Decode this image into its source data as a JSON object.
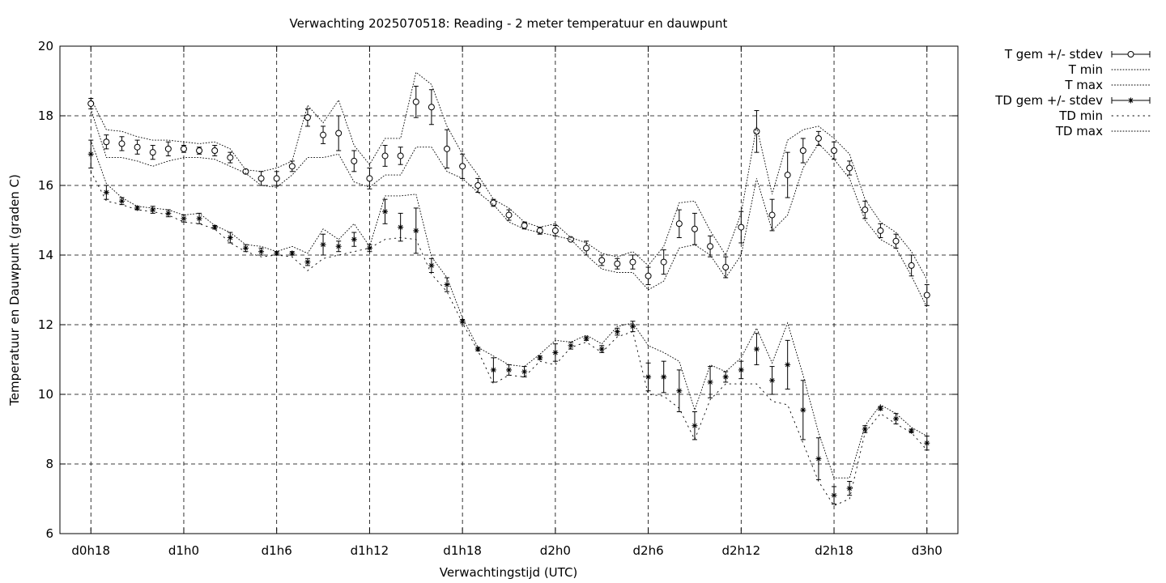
{
  "chart_data": {
    "type": "line",
    "title": "Verwachting 2025070518: Reading - 2 meter temperatuur en dauwpunt",
    "xlabel": "Verwachtingstijd (UTC)",
    "ylabel": "Temperatuur en Dauwpunt (graden C)",
    "x_unit": "hours since d0h0",
    "xlim": [
      16,
      74
    ],
    "ylim": [
      6,
      20
    ],
    "yticks": [
      6,
      8,
      10,
      12,
      14,
      16,
      18,
      20
    ],
    "xticks": [
      {
        "x": 18,
        "label": "d0h18"
      },
      {
        "x": 24,
        "label": "d1h0"
      },
      {
        "x": 30,
        "label": "d1h6"
      },
      {
        "x": 36,
        "label": "d1h12"
      },
      {
        "x": 42,
        "label": "d1h18"
      },
      {
        "x": 48,
        "label": "d2h0"
      },
      {
        "x": 54,
        "label": "d2h6"
      },
      {
        "x": 60,
        "label": "d2h12"
      },
      {
        "x": 66,
        "label": "d2h18"
      },
      {
        "x": 72,
        "label": "d3h0"
      }
    ],
    "grid": true,
    "legend_position": "outside-right",
    "x": [
      18,
      19,
      20,
      21,
      22,
      23,
      24,
      25,
      26,
      27,
      28,
      29,
      30,
      31,
      32,
      33,
      34,
      35,
      36,
      37,
      38,
      39,
      40,
      41,
      42,
      43,
      44,
      45,
      46,
      47,
      48,
      49,
      50,
      51,
      52,
      53,
      54,
      55,
      56,
      57,
      58,
      59,
      60,
      61,
      62,
      63,
      64,
      65,
      66,
      67,
      68,
      69,
      70,
      71,
      72
    ],
    "series": [
      {
        "name": "T gem +/- stdev",
        "marker": "circle",
        "values": [
          18.35,
          17.25,
          17.2,
          17.1,
          16.95,
          17.05,
          17.05,
          17.0,
          17.0,
          16.8,
          16.4,
          16.2,
          16.2,
          16.55,
          17.95,
          17.45,
          17.5,
          16.7,
          16.2,
          16.85,
          16.85,
          18.4,
          18.25,
          17.05,
          16.55,
          16.0,
          15.5,
          15.15,
          14.85,
          14.7,
          14.7,
          14.45,
          14.2,
          13.85,
          13.75,
          13.8,
          13.4,
          13.8,
          14.9,
          14.75,
          14.25,
          13.65,
          14.8,
          17.55,
          15.15,
          16.3,
          17.0,
          17.35,
          17.0,
          16.5,
          15.3,
          14.7,
          14.4,
          13.7,
          12.85
        ],
        "stdev": [
          0.15,
          0.2,
          0.2,
          0.2,
          0.2,
          0.2,
          0.1,
          0.1,
          0.15,
          0.15,
          0.05,
          0.2,
          0.2,
          0.15,
          0.25,
          0.25,
          0.5,
          0.3,
          0.3,
          0.3,
          0.25,
          0.45,
          0.5,
          0.55,
          0.35,
          0.2,
          0.1,
          0.15,
          0.1,
          0.1,
          0.15,
          0.05,
          0.2,
          0.15,
          0.15,
          0.2,
          0.25,
          0.35,
          0.4,
          0.45,
          0.3,
          0.3,
          0.45,
          0.6,
          0.45,
          0.65,
          0.35,
          0.2,
          0.25,
          0.2,
          0.25,
          0.2,
          0.2,
          0.3,
          0.3
        ]
      },
      {
        "name": "T min",
        "style": "dotted-fine",
        "values": [
          18.2,
          16.8,
          16.8,
          16.7,
          16.55,
          16.7,
          16.8,
          16.8,
          16.75,
          16.55,
          16.35,
          16.0,
          15.95,
          16.3,
          16.8,
          16.8,
          16.9,
          16.1,
          15.95,
          16.3,
          16.3,
          17.1,
          17.1,
          16.4,
          16.2,
          15.8,
          15.45,
          14.95,
          14.75,
          14.65,
          14.55,
          14.45,
          14.0,
          13.6,
          13.5,
          13.5,
          13.0,
          13.25,
          14.2,
          14.3,
          14.0,
          13.35,
          14.0,
          16.2,
          14.7,
          15.15,
          16.5,
          17.2,
          16.75,
          16.2,
          15.0,
          14.45,
          14.2,
          13.4,
          12.5
        ]
      },
      {
        "name": "T max",
        "style": "dotted-fine",
        "values": [
          18.5,
          17.6,
          17.55,
          17.4,
          17.3,
          17.3,
          17.25,
          17.2,
          17.25,
          17.05,
          16.45,
          16.4,
          16.5,
          16.7,
          18.3,
          17.8,
          18.45,
          17.15,
          16.6,
          17.35,
          17.35,
          19.25,
          18.9,
          17.7,
          16.9,
          16.3,
          15.6,
          15.35,
          14.95,
          14.8,
          14.9,
          14.5,
          14.35,
          14.05,
          13.95,
          14.1,
          13.7,
          14.25,
          15.5,
          15.55,
          14.7,
          14.0,
          15.2,
          17.7,
          15.75,
          17.3,
          17.6,
          17.7,
          17.35,
          16.9,
          15.6,
          14.95,
          14.65,
          14.1,
          13.3
        ]
      },
      {
        "name": "TD gem +/- stdev",
        "marker": "star",
        "values": [
          16.9,
          15.8,
          15.55,
          15.35,
          15.3,
          15.2,
          15.05,
          15.05,
          14.8,
          14.5,
          14.2,
          14.1,
          14.05,
          14.05,
          13.8,
          14.3,
          14.25,
          14.45,
          14.2,
          15.25,
          14.8,
          14.7,
          13.7,
          13.15,
          12.1,
          11.3,
          10.7,
          10.7,
          10.65,
          11.05,
          11.2,
          11.4,
          11.6,
          11.3,
          11.8,
          11.95,
          10.5,
          10.5,
          10.1,
          9.1,
          10.35,
          10.5,
          10.7,
          11.3,
          10.4,
          10.85,
          9.55,
          8.15,
          7.1,
          7.3,
          9.0,
          9.6,
          9.3,
          8.95,
          8.6
        ],
        "stdev": [
          0.4,
          0.2,
          0.1,
          0.05,
          0.1,
          0.1,
          0.1,
          0.15,
          0.05,
          0.15,
          0.1,
          0.1,
          0.05,
          0.05,
          0.1,
          0.3,
          0.15,
          0.2,
          0.1,
          0.35,
          0.4,
          0.65,
          0.2,
          0.2,
          0.05,
          0.05,
          0.35,
          0.15,
          0.15,
          0.05,
          0.25,
          0.1,
          0.05,
          0.1,
          0.1,
          0.15,
          0.4,
          0.45,
          0.6,
          0.4,
          0.45,
          0.15,
          0.25,
          0.45,
          0.4,
          0.7,
          0.85,
          0.6,
          0.25,
          0.2,
          0.1,
          0.05,
          0.15,
          0.05,
          0.2
        ]
      },
      {
        "name": "TD min",
        "style": "dotted-coarse",
        "values": [
          16.4,
          15.55,
          15.45,
          15.3,
          15.25,
          15.15,
          14.95,
          14.9,
          14.75,
          14.35,
          14.1,
          13.95,
          14.0,
          13.95,
          13.55,
          13.9,
          14.0,
          14.1,
          14.2,
          14.45,
          14.5,
          14.45,
          13.45,
          12.95,
          12.05,
          11.25,
          10.3,
          10.55,
          10.5,
          10.95,
          10.85,
          11.35,
          11.5,
          11.2,
          11.65,
          11.8,
          10.0,
          9.95,
          9.6,
          8.7,
          9.85,
          10.3,
          10.3,
          10.3,
          9.8,
          9.7,
          8.6,
          7.5,
          6.8,
          7.0,
          8.9,
          9.45,
          9.15,
          8.9,
          8.4
        ]
      },
      {
        "name": "TD max",
        "style": "dotted-fine",
        "values": [
          17.3,
          16.05,
          15.65,
          15.4,
          15.35,
          15.3,
          15.15,
          15.2,
          14.85,
          14.65,
          14.3,
          14.25,
          14.1,
          14.25,
          14.05,
          14.75,
          14.45,
          14.9,
          14.25,
          15.7,
          15.7,
          15.75,
          13.95,
          13.35,
          12.2,
          11.35,
          11.1,
          10.85,
          10.8,
          11.15,
          11.55,
          11.5,
          11.7,
          11.45,
          11.95,
          12.05,
          11.4,
          11.2,
          10.95,
          9.55,
          10.85,
          10.65,
          11.05,
          11.9,
          10.9,
          12.05,
          10.55,
          8.9,
          7.6,
          7.6,
          9.1,
          9.7,
          9.45,
          9.05,
          8.8
        ]
      }
    ]
  }
}
